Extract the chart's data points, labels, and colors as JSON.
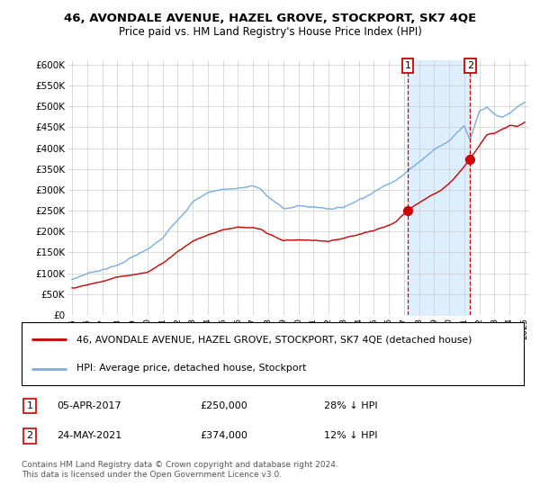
{
  "title": "46, AVONDALE AVENUE, HAZEL GROVE, STOCKPORT, SK7 4QE",
  "subtitle": "Price paid vs. HM Land Registry's House Price Index (HPI)",
  "red_label": "46, AVONDALE AVENUE, HAZEL GROVE, STOCKPORT, SK7 4QE (detached house)",
  "blue_label": "HPI: Average price, detached house, Stockport",
  "annotation1_date": "05-APR-2017",
  "annotation1_price": "£250,000",
  "annotation1_hpi": "28% ↓ HPI",
  "annotation2_date": "24-MAY-2021",
  "annotation2_price": "£374,000",
  "annotation2_hpi": "12% ↓ HPI",
  "footnote": "Contains HM Land Registry data © Crown copyright and database right 2024.\nThis data is licensed under the Open Government Licence v3.0.",
  "ylim": [
    0,
    610000
  ],
  "yticks": [
    0,
    50000,
    100000,
    150000,
    200000,
    250000,
    300000,
    350000,
    400000,
    450000,
    500000,
    550000,
    600000
  ],
  "ytick_labels": [
    "£0",
    "£50K",
    "£100K",
    "£150K",
    "£200K",
    "£250K",
    "£300K",
    "£350K",
    "£400K",
    "£450K",
    "£500K",
    "£550K",
    "£600K"
  ],
  "red_color": "#cc0000",
  "blue_color": "#7aade0",
  "shade_color": "#ddeeff",
  "dashed_color": "#cc0000",
  "sale1_x": 2017.25,
  "sale1_y": 250000,
  "sale2_x": 2021.38,
  "sale2_y": 374000,
  "background_color": "#ffffff",
  "grid_color": "#cccccc",
  "xlim_left": 1994.7,
  "xlim_right": 2025.3
}
